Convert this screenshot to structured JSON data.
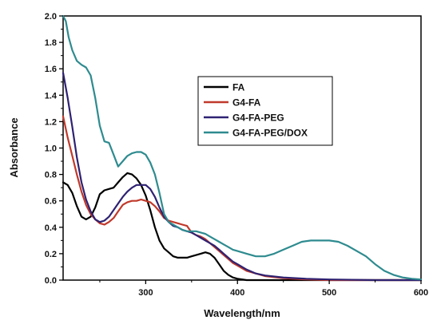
{
  "chart_data": {
    "type": "line",
    "xlabel": "Wavelength/nm",
    "ylabel": "Absorbance",
    "xlim": [
      210,
      600
    ],
    "ylim": [
      0,
      2.0
    ],
    "x_ticks": [
      "300",
      "400",
      "500",
      "600"
    ],
    "x_tick_values": [
      300,
      400,
      500,
      600
    ],
    "y_ticks": [
      "0.0",
      "0.2",
      "0.4",
      "0.6",
      "0.8",
      "1.0",
      "1.2",
      "1.4",
      "1.6",
      "1.8",
      "2.0"
    ],
    "y_tick_values": [
      0,
      0.2,
      0.4,
      0.6,
      0.8,
      1.0,
      1.2,
      1.4,
      1.6,
      1.8,
      2.0
    ],
    "grid": false,
    "legend_position": "upper-right",
    "series": [
      {
        "name": "FA",
        "color": "#000000",
        "points": [
          [
            210,
            0.74
          ],
          [
            215,
            0.72
          ],
          [
            220,
            0.66
          ],
          [
            225,
            0.56
          ],
          [
            230,
            0.48
          ],
          [
            235,
            0.46
          ],
          [
            240,
            0.48
          ],
          [
            245,
            0.55
          ],
          [
            250,
            0.65
          ],
          [
            255,
            0.68
          ],
          [
            260,
            0.69
          ],
          [
            265,
            0.7
          ],
          [
            270,
            0.74
          ],
          [
            275,
            0.78
          ],
          [
            280,
            0.81
          ],
          [
            285,
            0.8
          ],
          [
            290,
            0.77
          ],
          [
            295,
            0.72
          ],
          [
            300,
            0.64
          ],
          [
            305,
            0.53
          ],
          [
            310,
            0.4
          ],
          [
            315,
            0.3
          ],
          [
            320,
            0.24
          ],
          [
            325,
            0.21
          ],
          [
            330,
            0.18
          ],
          [
            335,
            0.17
          ],
          [
            340,
            0.17
          ],
          [
            345,
            0.17
          ],
          [
            350,
            0.18
          ],
          [
            355,
            0.19
          ],
          [
            360,
            0.2
          ],
          [
            365,
            0.21
          ],
          [
            370,
            0.2
          ],
          [
            375,
            0.17
          ],
          [
            380,
            0.12
          ],
          [
            385,
            0.07
          ],
          [
            390,
            0.04
          ],
          [
            395,
            0.02
          ],
          [
            400,
            0.01
          ],
          [
            410,
            0.0
          ],
          [
            420,
            0.0
          ],
          [
            450,
            0.0
          ],
          [
            500,
            0.0
          ],
          [
            550,
            0.0
          ],
          [
            600,
            0.0
          ]
        ]
      },
      {
        "name": "G4-FA",
        "color": "#c0392b",
        "points": [
          [
            210,
            1.24
          ],
          [
            215,
            1.08
          ],
          [
            220,
            0.94
          ],
          [
            225,
            0.8
          ],
          [
            230,
            0.67
          ],
          [
            235,
            0.57
          ],
          [
            240,
            0.5
          ],
          [
            245,
            0.46
          ],
          [
            250,
            0.43
          ],
          [
            255,
            0.42
          ],
          [
            260,
            0.44
          ],
          [
            265,
            0.47
          ],
          [
            270,
            0.52
          ],
          [
            275,
            0.57
          ],
          [
            280,
            0.59
          ],
          [
            285,
            0.6
          ],
          [
            290,
            0.6
          ],
          [
            295,
            0.61
          ],
          [
            300,
            0.6
          ],
          [
            305,
            0.59
          ],
          [
            310,
            0.56
          ],
          [
            315,
            0.52
          ],
          [
            320,
            0.47
          ],
          [
            325,
            0.45
          ],
          [
            330,
            0.44
          ],
          [
            335,
            0.43
          ],
          [
            340,
            0.42
          ],
          [
            345,
            0.41
          ],
          [
            350,
            0.36
          ],
          [
            355,
            0.34
          ],
          [
            360,
            0.33
          ],
          [
            365,
            0.31
          ],
          [
            370,
            0.28
          ],
          [
            375,
            0.25
          ],
          [
            380,
            0.22
          ],
          [
            385,
            0.19
          ],
          [
            390,
            0.16
          ],
          [
            395,
            0.13
          ],
          [
            400,
            0.11
          ],
          [
            410,
            0.07
          ],
          [
            420,
            0.05
          ],
          [
            430,
            0.03
          ],
          [
            450,
            0.015
          ],
          [
            475,
            0.005
          ],
          [
            500,
            0.0
          ],
          [
            550,
            0.0
          ],
          [
            600,
            0.0
          ]
        ]
      },
      {
        "name": "G4-FA-PEG",
        "color": "#2e2272",
        "points": [
          [
            210,
            1.57
          ],
          [
            215,
            1.38
          ],
          [
            220,
            1.16
          ],
          [
            225,
            0.93
          ],
          [
            230,
            0.74
          ],
          [
            235,
            0.61
          ],
          [
            240,
            0.52
          ],
          [
            245,
            0.46
          ],
          [
            250,
            0.44
          ],
          [
            255,
            0.45
          ],
          [
            260,
            0.48
          ],
          [
            265,
            0.53
          ],
          [
            270,
            0.58
          ],
          [
            275,
            0.63
          ],
          [
            280,
            0.67
          ],
          [
            285,
            0.7
          ],
          [
            290,
            0.72
          ],
          [
            295,
            0.72
          ],
          [
            300,
            0.72
          ],
          [
            305,
            0.69
          ],
          [
            310,
            0.63
          ],
          [
            315,
            0.55
          ],
          [
            320,
            0.48
          ],
          [
            325,
            0.44
          ],
          [
            330,
            0.41
          ],
          [
            335,
            0.4
          ],
          [
            340,
            0.38
          ],
          [
            345,
            0.37
          ],
          [
            350,
            0.36
          ],
          [
            355,
            0.34
          ],
          [
            360,
            0.32
          ],
          [
            365,
            0.3
          ],
          [
            370,
            0.28
          ],
          [
            375,
            0.26
          ],
          [
            380,
            0.23
          ],
          [
            385,
            0.2
          ],
          [
            390,
            0.17
          ],
          [
            395,
            0.14
          ],
          [
            400,
            0.12
          ],
          [
            410,
            0.08
          ],
          [
            420,
            0.05
          ],
          [
            430,
            0.035
          ],
          [
            450,
            0.02
          ],
          [
            475,
            0.01
          ],
          [
            500,
            0.005
          ],
          [
            550,
            0.0
          ],
          [
            600,
            0.0
          ]
        ]
      },
      {
        "name": "G4-FA-PEG/DOX",
        "color": "#2e8b8f",
        "points": [
          [
            210,
            2.0
          ],
          [
            213,
            1.96
          ],
          [
            216,
            1.84
          ],
          [
            220,
            1.74
          ],
          [
            225,
            1.66
          ],
          [
            230,
            1.63
          ],
          [
            235,
            1.61
          ],
          [
            240,
            1.55
          ],
          [
            245,
            1.38
          ],
          [
            250,
            1.17
          ],
          [
            255,
            1.05
          ],
          [
            260,
            1.04
          ],
          [
            265,
            0.95
          ],
          [
            270,
            0.86
          ],
          [
            275,
            0.9
          ],
          [
            280,
            0.94
          ],
          [
            285,
            0.96
          ],
          [
            290,
            0.97
          ],
          [
            295,
            0.97
          ],
          [
            300,
            0.95
          ],
          [
            305,
            0.89
          ],
          [
            310,
            0.8
          ],
          [
            315,
            0.66
          ],
          [
            320,
            0.5
          ],
          [
            325,
            0.44
          ],
          [
            330,
            0.42
          ],
          [
            335,
            0.4
          ],
          [
            340,
            0.38
          ],
          [
            345,
            0.37
          ],
          [
            350,
            0.37
          ],
          [
            355,
            0.37
          ],
          [
            360,
            0.36
          ],
          [
            365,
            0.35
          ],
          [
            370,
            0.33
          ],
          [
            375,
            0.31
          ],
          [
            380,
            0.29
          ],
          [
            385,
            0.27
          ],
          [
            390,
            0.25
          ],
          [
            395,
            0.23
          ],
          [
            400,
            0.22
          ],
          [
            410,
            0.2
          ],
          [
            420,
            0.18
          ],
          [
            430,
            0.18
          ],
          [
            440,
            0.2
          ],
          [
            450,
            0.23
          ],
          [
            460,
            0.26
          ],
          [
            470,
            0.29
          ],
          [
            480,
            0.3
          ],
          [
            490,
            0.3
          ],
          [
            500,
            0.3
          ],
          [
            510,
            0.29
          ],
          [
            520,
            0.26
          ],
          [
            530,
            0.22
          ],
          [
            540,
            0.18
          ],
          [
            550,
            0.12
          ],
          [
            560,
            0.07
          ],
          [
            570,
            0.04
          ],
          [
            580,
            0.02
          ],
          [
            590,
            0.01
          ],
          [
            600,
            0.005
          ]
        ]
      }
    ]
  }
}
